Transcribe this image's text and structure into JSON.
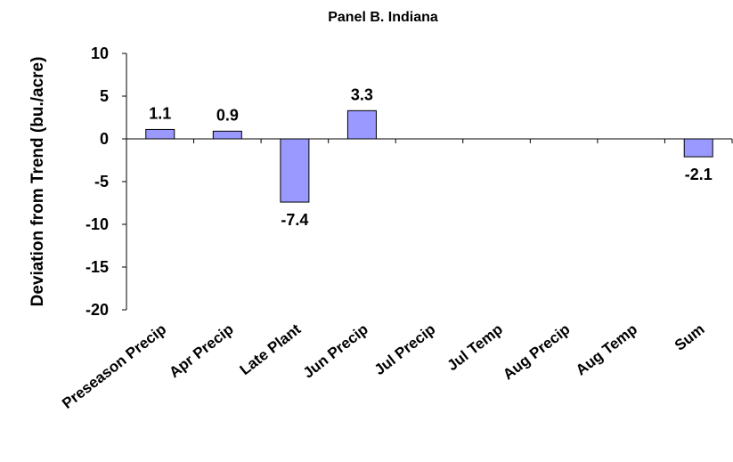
{
  "chart_data": {
    "type": "bar",
    "title": "Panel B. Indiana",
    "ylabel": "Deviation from Trend (bu./acre)",
    "xlabel": "",
    "categories": [
      "Preseason Precip",
      "Apr Precip",
      "Late Plant",
      "Jun Precip",
      "Jul Precip",
      "Jul Temp",
      "Aug Precip",
      "Aug Temp",
      "Sum"
    ],
    "values": [
      1.1,
      0.9,
      -7.4,
      3.3,
      0,
      0,
      0,
      0,
      -2.1
    ],
    "data_labels": [
      "1.1",
      "0.9",
      "-7.4",
      "3.3",
      "",
      "",
      "",
      "",
      "-2.1"
    ],
    "ylim": [
      -20,
      10
    ],
    "yticks": [
      10,
      5,
      0,
      -5,
      -10,
      -15,
      -20
    ],
    "grid": false,
    "legend": "none",
    "bar_color": "#9999ff"
  }
}
